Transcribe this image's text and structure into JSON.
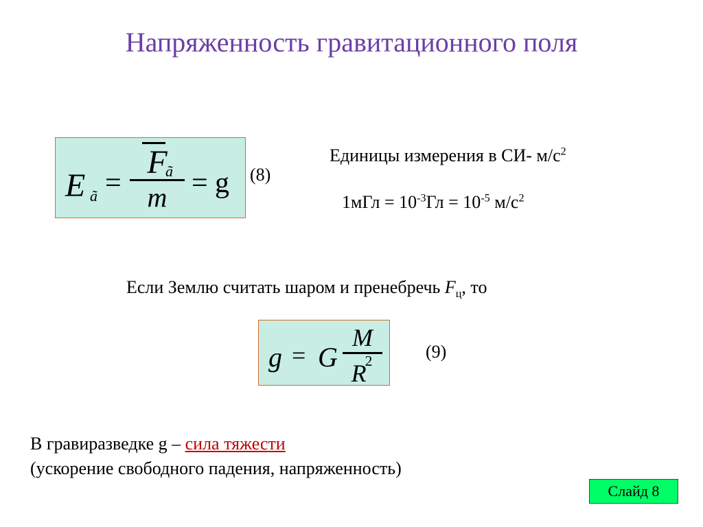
{
  "title": "Напряженность гравитационного поля",
  "colors": {
    "title": "#6a3fa8",
    "formula_bg": "#c7ede4",
    "formula_border": "#d06e2a",
    "emphasis_red": "#c00000",
    "badge_bg": "#00ff66",
    "badge_border": "#0a6b2a",
    "text": "#000000",
    "background": "#ffffff"
  },
  "typography": {
    "title_fontsize": 40,
    "body_fontsize": 26,
    "formula_large_fontsize": 48,
    "formula_small_fontsize": 40,
    "font_family": "Times New Roman"
  },
  "eq1": {
    "lhs_var": "E",
    "lhs_sub": "ã",
    "eq": "=",
    "num_var": "F",
    "num_sub": "ã",
    "num_overbar": true,
    "den_var": "m",
    "rhs_eq": "=",
    "rhs_var": "g",
    "label": "(8)"
  },
  "si": {
    "line1_prefix": "Единицы измерения в СИ- м/с",
    "line1_exp": "2",
    "line2_a": "1мГл = 10",
    "line2_exp1": "-3",
    "line2_b": "Гл = 10",
    "line2_exp2": "-5",
    "line2_c": " м/с",
    "line2_exp3": "2"
  },
  "mid": {
    "prefix": "Если Землю считать шаром и пренебречь ",
    "var": "F",
    "sub": "ц",
    "suffix": ", то"
  },
  "eq2": {
    "lhs": "g",
    "eq": "=",
    "G": "G",
    "num": "M",
    "den_base": "R",
    "den_exp": "2",
    "label": "(9)"
  },
  "bottom": {
    "line1_prefix": "В гравиразведке g – ",
    "line1_red": "сила тяжести ",
    "line2": "(ускорение свободного падения, напряженность)"
  },
  "slide_badge": "Слайд 8"
}
